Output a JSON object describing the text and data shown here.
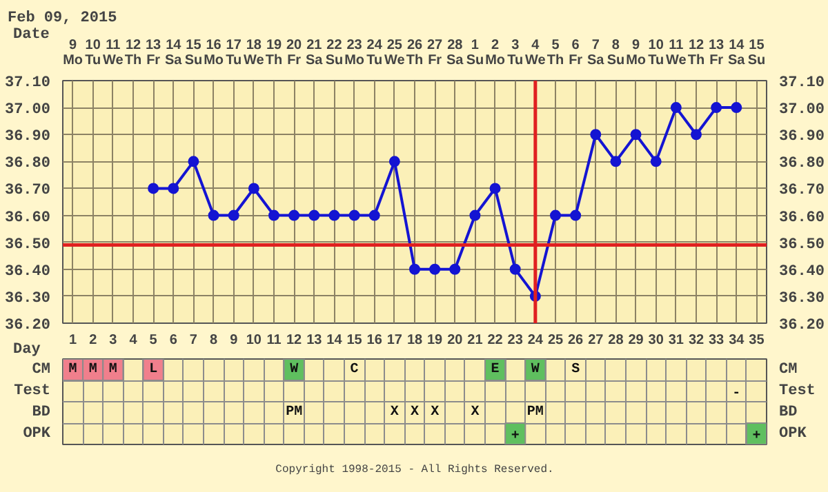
{
  "chart_data": [
    {
      "type": "line",
      "title": "Feb 09, 2015",
      "xlabel": "Day",
      "x": [
        5,
        6,
        7,
        8,
        9,
        10,
        11,
        12,
        13,
        14,
        15,
        16,
        17,
        18,
        19,
        20,
        21,
        22,
        23,
        24,
        25,
        26,
        27,
        28,
        29,
        30,
        31,
        32,
        33,
        34
      ],
      "values": [
        36.7,
        36.7,
        36.8,
        36.6,
        36.6,
        36.7,
        36.6,
        36.6,
        36.6,
        36.6,
        36.6,
        36.6,
        36.8,
        36.4,
        36.4,
        36.4,
        36.6,
        36.7,
        36.4,
        36.3,
        36.6,
        36.6,
        36.9,
        36.8,
        36.9,
        36.8,
        37.0,
        36.9,
        37.0,
        37.0
      ],
      "color": "#1414d2",
      "marker": "circle",
      "grid": true,
      "xlim": [
        0.5,
        35.5
      ],
      "xticks": [
        1,
        2,
        3,
        4,
        5,
        6,
        7,
        8,
        9,
        10,
        11,
        12,
        13,
        14,
        15,
        16,
        17,
        18,
        19,
        20,
        21,
        22,
        23,
        24,
        25,
        26,
        27,
        28,
        29,
        30,
        31,
        32,
        33,
        34,
        35
      ],
      "x2label": "Date",
      "x2lim": [
        "2015-02-08T12:00",
        "2015-03-15T12:00"
      ],
      "x2ticks": [
        {
          "value": "2015-02-09",
          "label": "9\nMo"
        },
        {
          "value": "2015-02-10",
          "label": "10\nTu"
        },
        {
          "value": "2015-02-11",
          "label": "11\nWe"
        },
        {
          "value": "2015-02-12",
          "label": "12\nTh"
        },
        {
          "value": "2015-02-13",
          "label": "13\nFr"
        },
        {
          "value": "2015-02-14",
          "label": "14\nSa"
        },
        {
          "value": "2015-02-15",
          "label": "15\nSu"
        },
        {
          "value": "2015-02-16",
          "label": "16\nMo"
        },
        {
          "value": "2015-02-17",
          "label": "17\nTu"
        },
        {
          "value": "2015-02-18",
          "label": "18\nWe"
        },
        {
          "value": "2015-02-19",
          "label": "19\nTh"
        },
        {
          "value": "2015-02-20",
          "label": "20\nFr"
        },
        {
          "value": "2015-02-21",
          "label": "21\nSa"
        },
        {
          "value": "2015-02-22",
          "label": "22\nSu"
        },
        {
          "value": "2015-02-23",
          "label": "23\nMo"
        },
        {
          "value": "2015-02-24",
          "label": "24\nTu"
        },
        {
          "value": "2015-02-25",
          "label": "25\nWe"
        },
        {
          "value": "2015-02-26",
          "label": "26\nTh"
        },
        {
          "value": "2015-02-27",
          "label": "27\nFr"
        },
        {
          "value": "2015-02-28",
          "label": "28\nSa"
        },
        {
          "value": "2015-03-01",
          "label": "1\nSu"
        },
        {
          "value": "2015-03-02",
          "label": "2\nMo"
        },
        {
          "value": "2015-03-03",
          "label": "3\nTu"
        },
        {
          "value": "2015-03-04",
          "label": "4\nWe"
        },
        {
          "value": "2015-03-05",
          "label": "5\nTh"
        },
        {
          "value": "2015-03-06",
          "label": "6\nFr"
        },
        {
          "value": "2015-03-07",
          "label": "7\nSa"
        },
        {
          "value": "2015-03-08",
          "label": "8\nSu"
        },
        {
          "value": "2015-03-09",
          "label": "9\nMo"
        },
        {
          "value": "2015-03-10",
          "label": "10\nTu"
        },
        {
          "value": "2015-03-11",
          "label": "11\nWe"
        },
        {
          "value": "2015-03-12",
          "label": "12\nTh"
        },
        {
          "value": "2015-03-13",
          "label": "13\nFr"
        },
        {
          "value": "2015-03-14",
          "label": "14\nSa"
        },
        {
          "value": "2015-03-15",
          "label": "15\nSu"
        }
      ],
      "ylim": [
        36.2,
        37.1
      ],
      "yticks": [
        {
          "value": 36.2,
          "label": "36.20"
        },
        {
          "value": 36.3,
          "label": "36.30"
        },
        {
          "value": 36.4,
          "label": "36.40"
        },
        {
          "value": 36.5,
          "label": "36.50"
        },
        {
          "value": 36.6,
          "label": "36.60"
        },
        {
          "value": 36.7,
          "label": "36.70"
        },
        {
          "value": 36.8,
          "label": "36.80"
        },
        {
          "value": 36.9,
          "label": "36.90"
        },
        {
          "value": 37.0,
          "label": "37.00"
        },
        {
          "value": 37.1,
          "label": "37.10"
        }
      ],
      "y2lim": [
        36.2,
        37.1
      ],
      "y2ticks": [
        {
          "value": 36.2,
          "label": "36.20"
        },
        {
          "value": 36.3,
          "label": "36.30"
        },
        {
          "value": 36.4,
          "label": "36.40"
        },
        {
          "value": 36.5,
          "label": "36.50"
        },
        {
          "value": 36.6,
          "label": "36.60"
        },
        {
          "value": 36.7,
          "label": "36.70"
        },
        {
          "value": 36.8,
          "label": "36.80"
        },
        {
          "value": 36.9,
          "label": "36.90"
        },
        {
          "value": 37.0,
          "label": "37.00"
        },
        {
          "value": 37.1,
          "label": "37.10"
        }
      ],
      "ref_lines": [
        {
          "axis": "y",
          "value": 36.49,
          "color": "#e02020"
        },
        {
          "axis": "x",
          "value": 24,
          "color": "#e02020"
        }
      ]
    },
    {
      "type": "other",
      "y_categories": [
        "CM",
        "Test",
        "BD",
        "OPK"
      ],
      "y2_categories": [
        "CM",
        "Test",
        "BD",
        "OPK"
      ],
      "cell_labels": [
        [
          "M",
          "M",
          "M",
          null,
          "L",
          null,
          null,
          null,
          null,
          null,
          null,
          "W",
          null,
          null,
          "C",
          null,
          null,
          null,
          null,
          null,
          null,
          "E",
          null,
          "W",
          null,
          "S",
          null,
          null,
          null,
          null,
          null,
          null,
          null,
          null,
          null
        ],
        [
          null,
          null,
          null,
          null,
          null,
          null,
          null,
          null,
          null,
          null,
          null,
          null,
          null,
          null,
          null,
          null,
          null,
          null,
          null,
          null,
          null,
          null,
          null,
          null,
          null,
          null,
          null,
          null,
          null,
          null,
          null,
          null,
          null,
          "-",
          null
        ],
        [
          null,
          null,
          null,
          null,
          null,
          null,
          null,
          null,
          null,
          null,
          null,
          "PM",
          null,
          null,
          null,
          null,
          "X",
          "X",
          "X",
          null,
          "X",
          null,
          null,
          "PM",
          null,
          null,
          null,
          null,
          null,
          null,
          null,
          null,
          null,
          null,
          null
        ],
        [
          null,
          null,
          null,
          null,
          null,
          null,
          null,
          null,
          null,
          null,
          null,
          null,
          null,
          null,
          null,
          null,
          null,
          null,
          null,
          null,
          null,
          null,
          "+",
          null,
          null,
          null,
          null,
          null,
          null,
          null,
          null,
          null,
          null,
          null,
          "+"
        ]
      ],
      "colors": [
        [
          "#f07f8c",
          "#f07f8c",
          "#f07f8c",
          null,
          "#f07f8c",
          null,
          null,
          null,
          null,
          null,
          null,
          "#5fbf5f",
          null,
          null,
          null,
          null,
          null,
          null,
          null,
          null,
          null,
          "#5fbf5f",
          null,
          "#5fbf5f",
          null,
          null,
          null,
          null,
          null,
          null,
          null,
          null,
          null,
          null,
          null
        ],
        [
          null,
          null,
          null,
          null,
          null,
          null,
          null,
          null,
          null,
          null,
          null,
          null,
          null,
          null,
          null,
          null,
          null,
          null,
          null,
          null,
          null,
          null,
          null,
          null,
          null,
          null,
          null,
          null,
          null,
          null,
          null,
          null,
          null,
          null,
          null
        ],
        [
          null,
          null,
          null,
          null,
          null,
          null,
          null,
          null,
          null,
          null,
          null,
          null,
          null,
          null,
          null,
          null,
          null,
          null,
          null,
          null,
          null,
          null,
          null,
          null,
          null,
          null,
          null,
          null,
          null,
          null,
          null,
          null,
          null,
          null,
          null
        ],
        [
          null,
          null,
          null,
          null,
          null,
          null,
          null,
          null,
          null,
          null,
          null,
          null,
          null,
          null,
          null,
          null,
          null,
          null,
          null,
          null,
          null,
          null,
          "#5fbf5f",
          null,
          null,
          null,
          null,
          null,
          null,
          null,
          null,
          null,
          null,
          null,
          "#5fbf5f"
        ]
      ],
      "annotations": [
        "Copyright 1998-2015 - All Rights Reserved."
      ]
    }
  ]
}
